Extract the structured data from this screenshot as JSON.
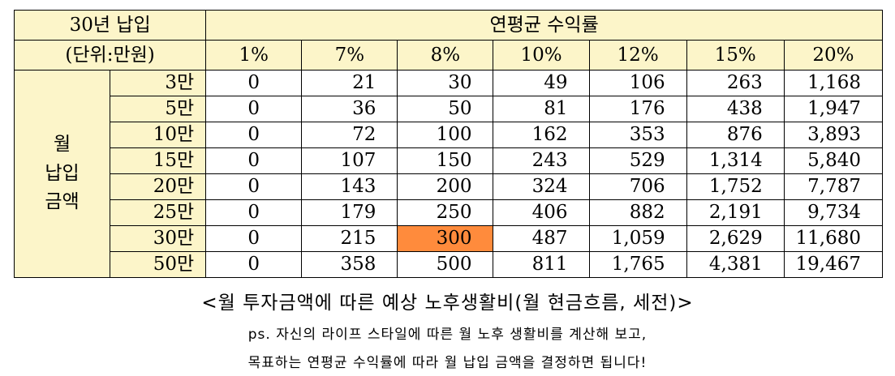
{
  "table": {
    "corner_line1": "30년 납입",
    "corner_line2": "(단위:만원)",
    "group_header": "연평균 수익률",
    "rate_headers": [
      "1%",
      "7%",
      "8%",
      "10%",
      "12%",
      "15%",
      "20%"
    ],
    "side_label_lines": [
      "월",
      "납입",
      "금액"
    ],
    "rows": [
      {
        "label": "3만",
        "values": [
          "0",
          "21",
          "30",
          "49",
          "106",
          "263",
          "1,168"
        ]
      },
      {
        "label": "5만",
        "values": [
          "0",
          "36",
          "50",
          "81",
          "176",
          "438",
          "1,947"
        ]
      },
      {
        "label": "10만",
        "values": [
          "0",
          "72",
          "100",
          "162",
          "353",
          "876",
          "3,893"
        ]
      },
      {
        "label": "15만",
        "values": [
          "0",
          "107",
          "150",
          "243",
          "529",
          "1,314",
          "5,840"
        ]
      },
      {
        "label": "20만",
        "values": [
          "0",
          "143",
          "200",
          "324",
          "706",
          "1,752",
          "7,787"
        ]
      },
      {
        "label": "25만",
        "values": [
          "0",
          "179",
          "250",
          "406",
          "882",
          "2,191",
          "9,734"
        ]
      },
      {
        "label": "30만",
        "values": [
          "0",
          "215",
          "300",
          "487",
          "1,059",
          "2,629",
          "11,680"
        ]
      },
      {
        "label": "50만",
        "values": [
          "0",
          "358",
          "500",
          "811",
          "1,765",
          "4,381",
          "19,467"
        ]
      }
    ],
    "highlight": {
      "row": 6,
      "col": 2,
      "color": "#ff8b3c"
    },
    "header_color": "#fcf5c9"
  },
  "caption": "<월 투자금액에 따른 예상 노후생활비(월 현금흐름, 세전)>",
  "note_line1": "ps. 자신의 라이프 스타일에 따른 월 노후 생활비를 계산해 보고,",
  "note_line2": "목표하는 연평균 수익률에 따라 월 납입 금액을 결정하면 됩니다!"
}
